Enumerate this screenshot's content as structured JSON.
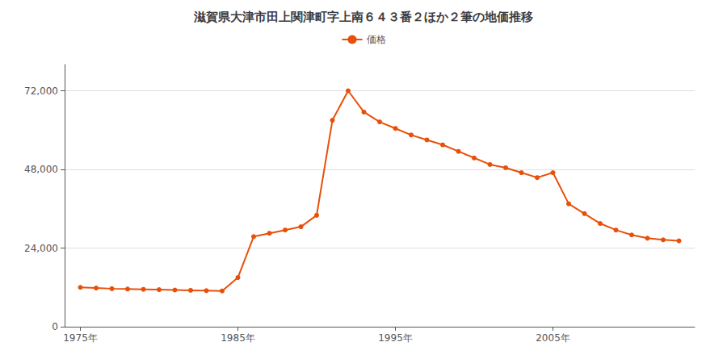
{
  "chart_data": {
    "type": "line",
    "title": "滋賀県大津市田上関津町字上南６４３番２ほか２筆の地価推移",
    "x": [
      1975,
      1976,
      1977,
      1978,
      1979,
      1980,
      1981,
      1982,
      1983,
      1984,
      1985,
      1986,
      1987,
      1988,
      1989,
      1990,
      1991,
      1992,
      1993,
      1994,
      1995,
      1996,
      1997,
      1998,
      1999,
      2000,
      2001,
      2002,
      2003,
      2004,
      2005,
      2006,
      2007,
      2008,
      2009,
      2010,
      2011,
      2012,
      2013
    ],
    "series": [
      {
        "name": "価格",
        "color": "#E8500A",
        "marker": "circle",
        "values": [
          12000,
          11800,
          11600,
          11500,
          11400,
          11300,
          11200,
          11100,
          11000,
          10900,
          15000,
          27500,
          28500,
          29500,
          30500,
          34000,
          63000,
          72000,
          65500,
          62500,
          60500,
          58500,
          57000,
          55500,
          53500,
          51500,
          49500,
          48500,
          47000,
          45500,
          47000,
          37500,
          34500,
          31500,
          29500,
          28000,
          27000,
          26500,
          26200
        ]
      }
    ],
    "xlim": [
      1974,
      2014
    ],
    "xticks": [
      {
        "value": 1975,
        "label": "1975年"
      },
      {
        "value": 1985,
        "label": "1985年"
      },
      {
        "value": 1995,
        "label": "1995年"
      },
      {
        "value": 2005,
        "label": "2005年"
      }
    ],
    "ylim": [
      0,
      80000
    ],
    "yticks": [
      0,
      {
        "value": 24000,
        "label": "24,000"
      },
      {
        "value": 48000,
        "label": "48,000"
      },
      {
        "value": 72000,
        "label": "72,000"
      }
    ],
    "grid": "y",
    "legend": "top"
  }
}
